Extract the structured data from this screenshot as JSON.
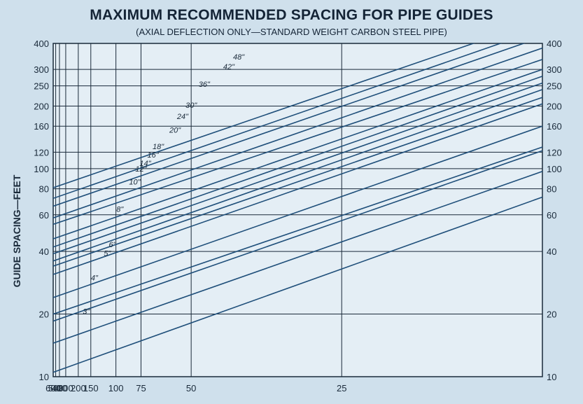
{
  "title": "MAXIMUM RECOMMENDED SPACING FOR PIPE GUIDES",
  "subtitle": "(AXIAL DEFLECTION ONLY—STANDARD WEIGHT CARBON STEEL PIPE)",
  "colors": {
    "background": "#cfe0ec",
    "grid": "#1a2a3a",
    "line": "#1f4f7a",
    "text": "#1a2a3a"
  },
  "chart_data": {
    "type": "line",
    "title": "MAXIMUM RECOMMENDED SPACING FOR PIPE GUIDES",
    "subtitle": "(AXIAL DEFLECTION ONLY—STANDARD WEIGHT CARBON STEEL PIPE)",
    "ylabel": "GUIDE SPACING—FEET",
    "xlabel": "",
    "y_scale": "log",
    "x_scale": "reciprocal",
    "ylim": [
      10,
      400
    ],
    "xlim": [
      600,
      15
    ],
    "x_ticks": [
      600,
      500,
      400,
      300,
      200,
      150,
      100,
      75,
      50,
      25
    ],
    "y_ticks": [
      10,
      20,
      40,
      60,
      80,
      100,
      120,
      160,
      200,
      250,
      300,
      400
    ],
    "grid": true,
    "x_description": "x axis tick values (same quantity, decreasing left to right)",
    "series": [
      {
        "name": "3\"",
        "x": [
          600,
          15
        ],
        "y": [
          10.5,
          73
        ]
      },
      {
        "name": "4\"",
        "x": [
          600,
          15
        ],
        "y": [
          14.5,
          97
        ]
      },
      {
        "name": "5\"",
        "x": [
          600,
          15
        ],
        "y": [
          18.5,
          122
        ]
      },
      {
        "name": "6\"",
        "x": [
          600,
          15
        ],
        "y": [
          20,
          127
        ]
      },
      {
        "name": "8\"",
        "x": [
          600,
          15
        ],
        "y": [
          24,
          160
        ]
      },
      {
        "name": "10\"",
        "x": [
          600,
          15
        ],
        "y": [
          31,
          205
        ]
      },
      {
        "name": "12\"",
        "x": [
          600,
          15
        ],
        "y": [
          34,
          220
        ]
      },
      {
        "name": "14\"",
        "x": [
          600,
          15
        ],
        "y": [
          36,
          240
        ]
      },
      {
        "name": "16\"",
        "x": [
          600,
          15
        ],
        "y": [
          39,
          258
        ]
      },
      {
        "name": "18\"",
        "x": [
          600,
          15
        ],
        "y": [
          42,
          278
        ]
      },
      {
        "name": "20\"",
        "x": [
          600,
          15
        ],
        "y": [
          46,
          300
        ]
      },
      {
        "name": "24\"",
        "x": [
          600,
          15
        ],
        "y": [
          54,
          335
        ]
      },
      {
        "name": "30\"",
        "x": [
          600,
          15
        ],
        "y": [
          58,
          380
        ]
      },
      {
        "name": "36\"",
        "x": [
          600,
          15
        ],
        "y": [
          66,
          430
        ]
      },
      {
        "name": "42\"",
        "x": [
          600,
          15
        ],
        "y": [
          72,
          470
        ]
      },
      {
        "name": "48\"",
        "x": [
          600,
          15
        ],
        "y": [
          81,
          520
        ]
      }
    ],
    "labels": [
      {
        "text": "3\"",
        "x": 165,
        "y": 20
      },
      {
        "text": "4\"",
        "x": 140,
        "y": 29
      },
      {
        "text": "5\"",
        "x": 113,
        "y": 38
      },
      {
        "text": "6\"",
        "x": 105,
        "y": 42
      },
      {
        "text": "8\"",
        "x": 95,
        "y": 62
      },
      {
        "text": "10\"",
        "x": 80,
        "y": 84
      },
      {
        "text": "12\"",
        "x": 75,
        "y": 97
      },
      {
        "text": "14\"",
        "x": 72,
        "y": 103
      },
      {
        "text": "16\"",
        "x": 67,
        "y": 113
      },
      {
        "text": "18\"",
        "x": 64,
        "y": 124
      },
      {
        "text": "20\"",
        "x": 56,
        "y": 149
      },
      {
        "text": "24\"",
        "x": 53,
        "y": 173
      },
      {
        "text": "30\"",
        "x": 50,
        "y": 196
      },
      {
        "text": "36\"",
        "x": 46,
        "y": 247
      },
      {
        "text": "42\"",
        "x": 40,
        "y": 300
      },
      {
        "text": "48\"",
        "x": 38,
        "y": 335
      }
    ]
  }
}
